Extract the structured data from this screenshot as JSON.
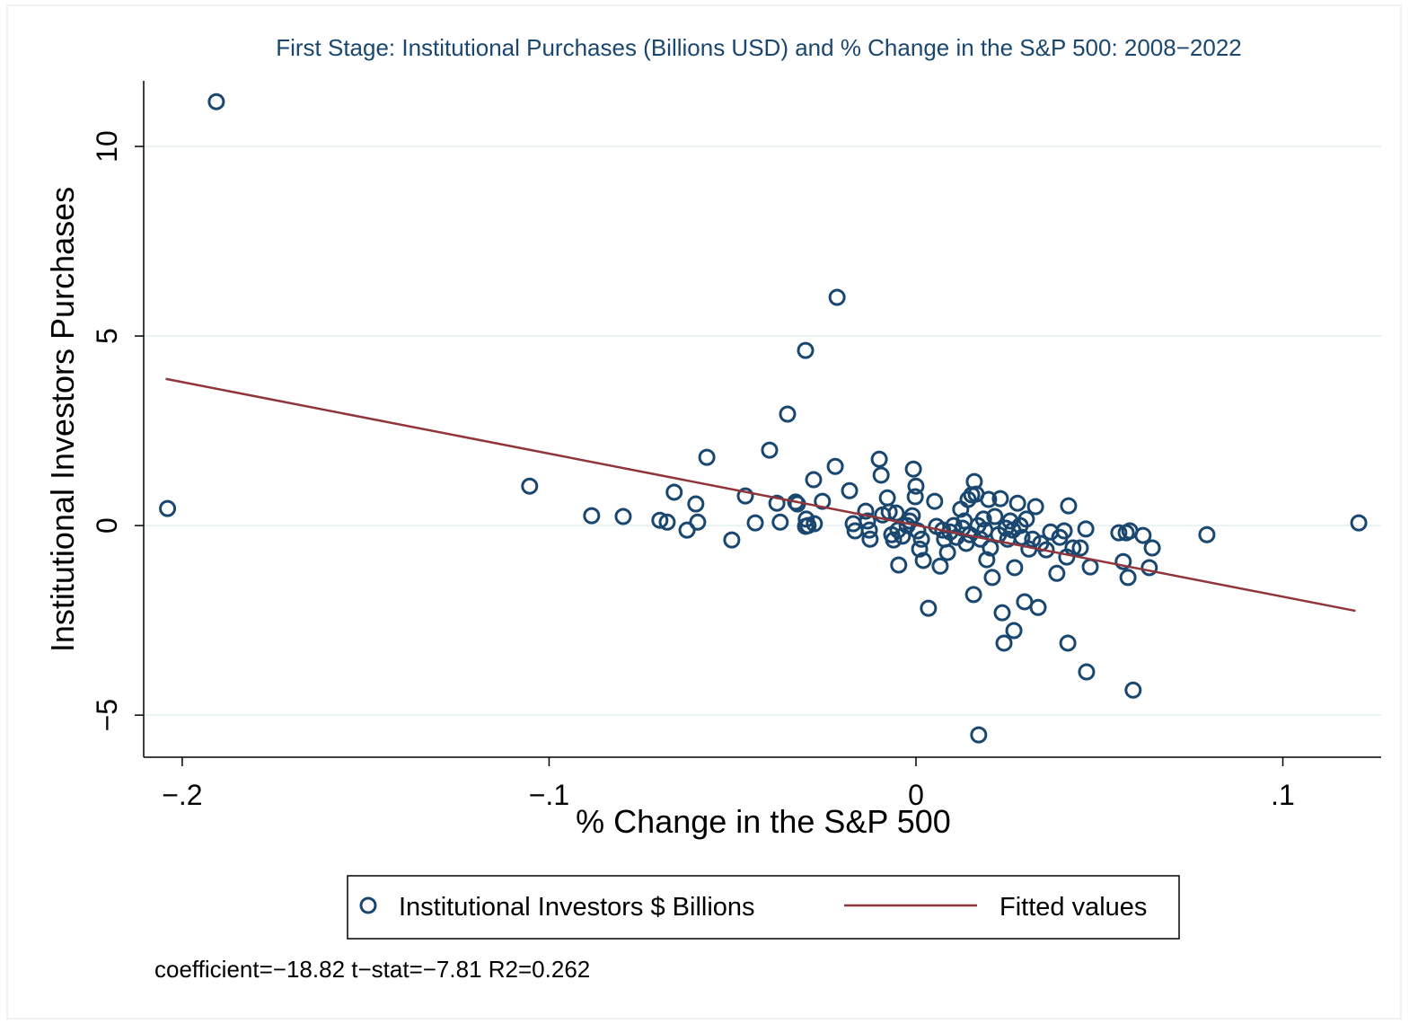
{
  "chart_data": {
    "type": "scatter",
    "title": "First Stage: Institutional Purchases (Billions USD) and  % Change in the S&P 500: 2008−2022",
    "xlabel": "% Change in the S&P 500",
    "ylabel": "Institutional Investors Purchases",
    "annotation": "coefficient=−18.82 t−stat=−7.81 R2=0.262",
    "xlim": [
      -0.2105,
      0.1268
    ],
    "ylim": [
      -6.11,
      11.73
    ],
    "xticks": [
      {
        "value": -0.2,
        "label": "−.2"
      },
      {
        "value": -0.1,
        "label": "−.1"
      },
      0,
      {
        "value": 0.1,
        "label": ".1"
      }
    ],
    "yticks": [
      {
        "value": -5,
        "label": "−5"
      },
      0,
      5,
      10
    ],
    "grid": true,
    "series": [
      {
        "name": "Institutional Investors $ Billions",
        "color": "#1a476f",
        "mode": "markers",
        "x": [
          -0.204,
          -0.1907,
          -0.1053,
          -0.0884,
          -0.0798,
          -0.0698,
          -0.0678,
          -0.0659,
          -0.0624,
          -0.06,
          -0.0595,
          -0.057,
          -0.0502,
          -0.0465,
          -0.0438,
          -0.0399,
          -0.0379,
          -0.037,
          -0.035,
          -0.0328,
          -0.0323,
          -0.0301,
          -0.0301,
          -0.0299,
          -0.0294,
          -0.0279,
          -0.0277,
          -0.0255,
          -0.022,
          -0.0215,
          -0.0181,
          -0.0171,
          -0.0166,
          -0.0137,
          -0.0132,
          -0.0127,
          -0.0125,
          -0.01,
          -0.0095,
          -0.0091,
          -0.0078,
          -0.0073,
          -0.0066,
          -0.0061,
          -0.0054,
          -0.0049,
          -0.0047,
          -0.0037,
          -0.0024,
          -0.0017,
          -0.001,
          -0.0007,
          -0.0002,
          0,
          0.0005,
          0.001,
          0.0015,
          0.002,
          0.0034,
          0.0051,
          0.0056,
          0.0066,
          0.0073,
          0.0078,
          0.0086,
          0.0093,
          0.0103,
          0.011,
          0.0122,
          0.0127,
          0.0132,
          0.0137,
          0.0142,
          0.0147,
          0.0152,
          0.0157,
          0.0159,
          0.0164,
          0.0169,
          0.0171,
          0.0176,
          0.0184,
          0.0188,
          0.0193,
          0.0198,
          0.0203,
          0.0208,
          0.0215,
          0.0225,
          0.023,
          0.0235,
          0.024,
          0.0245,
          0.025,
          0.0257,
          0.0264,
          0.0267,
          0.0269,
          0.0277,
          0.0284,
          0.0289,
          0.0296,
          0.0301,
          0.0308,
          0.0318,
          0.0326,
          0.0333,
          0.034,
          0.0355,
          0.0367,
          0.0384,
          0.0392,
          0.0404,
          0.0411,
          0.0414,
          0.0416,
          0.0428,
          0.0448,
          0.0463,
          0.0465,
          0.0475,
          0.0553,
          0.0565,
          0.0573,
          0.0578,
          0.0583,
          0.0592,
          0.0619,
          0.0636,
          0.0644,
          0.0793,
          0.1207
        ],
        "values": [
          0.45,
          11.18,
          1.04,
          0.26,
          0.24,
          0.14,
          0.09,
          0.88,
          -0.12,
          0.57,
          0.09,
          1.8,
          -0.38,
          0.78,
          0.07,
          1.99,
          0.59,
          0.09,
          2.94,
          0.62,
          0.57,
          4.62,
          -0.02,
          0.17,
          0,
          1.21,
          0.05,
          0.64,
          1.56,
          6.02,
          0.92,
          0.05,
          -0.14,
          0.38,
          0.12,
          -0.12,
          -0.36,
          1.75,
          1.33,
          0.28,
          0.73,
          0.36,
          -0.24,
          -0.38,
          0.33,
          -0.12,
          -1.04,
          -0.28,
          0,
          0.12,
          0.26,
          1.49,
          0.76,
          1.04,
          -0.14,
          -0.62,
          -0.36,
          -0.92,
          -2.18,
          0.64,
          -0.02,
          -1.07,
          -0.12,
          -0.36,
          -0.71,
          -0.17,
          0,
          -0.31,
          0.43,
          -0.07,
          0.12,
          -0.47,
          0.69,
          -0.24,
          0.81,
          -1.82,
          1.16,
          0.83,
          0,
          -5.52,
          -0.36,
          0.17,
          -0.12,
          -0.9,
          0.69,
          -0.59,
          -1.37,
          0.24,
          -0.24,
          0.71,
          -2.3,
          -3.1,
          -0.07,
          -0.36,
          0.12,
          -0.12,
          -2.77,
          -1.11,
          0.59,
          0,
          -0.31,
          -2.01,
          0.17,
          -0.62,
          -0.36,
          0.5,
          -2.16,
          -0.47,
          -0.64,
          -0.17,
          -1.26,
          -0.31,
          -0.14,
          -0.83,
          -3.1,
          0.52,
          -0.59,
          -0.59,
          -0.09,
          -3.86,
          -1.09,
          -0.19,
          -0.95,
          -0.19,
          -1.37,
          -0.14,
          -4.34,
          -0.26,
          -1.11,
          -0.59,
          -0.24,
          0.07
        ]
      },
      {
        "name": "Fitted values",
        "color": "#90353b",
        "mode": "line",
        "x": [
          -0.2045,
          0.1198
        ],
        "values": [
          3.87,
          -2.25
        ]
      }
    ]
  }
}
